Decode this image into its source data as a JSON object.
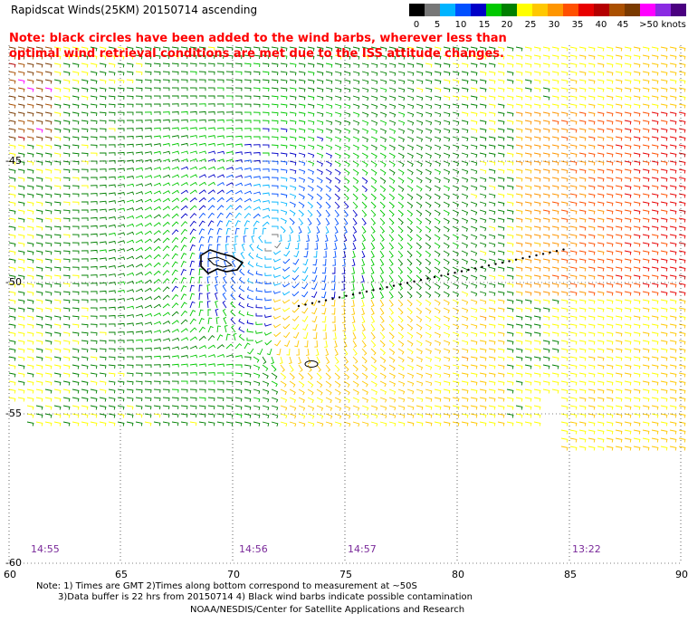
{
  "title": "Rapidscat Winds(25KM) 20150714  ascending",
  "note": "Note: black circles have been added to the wind barbs, wherever less than optimal wind retrieval conditions are met due to the ISS attitude changes.",
  "legend": {
    "colors": [
      "#000000",
      "#777777",
      "#00b4ff",
      "#0050ff",
      "#0000c8",
      "#00c800",
      "#008000",
      "#ffff00",
      "#ffc800",
      "#ff9600",
      "#ff5000",
      "#e80000",
      "#b40000",
      "#aa5000",
      "#7a3a00",
      "#ff00ff",
      "#8a2be2",
      "#4a0080"
    ],
    "labels": [
      "0",
      "5",
      "10",
      "15",
      "20",
      "25",
      "30",
      "35",
      "40",
      "45",
      ">50 knots"
    ]
  },
  "axes": {
    "lon_labels": [
      "60",
      "65",
      "70",
      "75",
      "80",
      "85",
      "90"
    ],
    "lat_labels": [
      "-45",
      "-50",
      "-55",
      "-60"
    ]
  },
  "times": [
    "14:55",
    "14:56",
    "14:57",
    "13:22"
  ],
  "footer": {
    "line1": "Note: 1) Times are GMT 2)Times along bottom correspond to measurement at ~50S",
    "line2": "3)Data buffer is 22 hrs from 20150714 4) Black wind barbs indicate possible contamination",
    "line3": "NOAA/NESDIS/Center for Satellite Applications and Research"
  }
}
